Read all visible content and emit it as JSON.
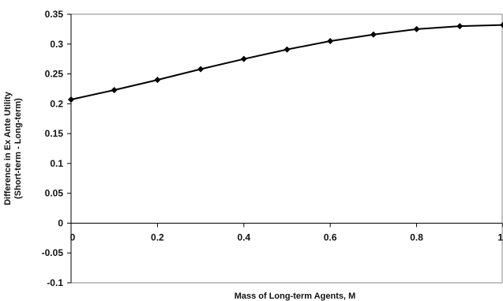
{
  "chart_data": {
    "type": "line",
    "title": "",
    "xlabel": "Mass of Long-term Agents, M",
    "ylabel_lines": [
      "Difference in Ex Ante Utility",
      "(Short-term - Long-term)"
    ],
    "xlim": [
      0,
      1
    ],
    "ylim": [
      -0.1,
      0.35
    ],
    "x_ticks": [
      0,
      0.2,
      0.4,
      0.6,
      0.8,
      1
    ],
    "x_tick_labels": [
      "0",
      "0.2",
      "0.4",
      "0.6",
      "0.8",
      "1"
    ],
    "y_ticks": [
      -0.1,
      -0.05,
      0,
      0.05,
      0.1,
      0.15,
      0.2,
      0.25,
      0.3,
      0.35
    ],
    "y_tick_labels": [
      "-0.1",
      "-0.05",
      "0",
      "0.05",
      "0.1",
      "0.15",
      "0.2",
      "0.25",
      "0.3",
      "0.35"
    ],
    "grid": false,
    "legend": "none",
    "series": [
      {
        "x": [
          0,
          0.1,
          0.2,
          0.3,
          0.4,
          0.5,
          0.6,
          0.7,
          0.8,
          0.9,
          1.0
        ],
        "y": [
          0.207,
          0.223,
          0.24,
          0.258,
          0.275,
          0.291,
          0.305,
          0.316,
          0.325,
          0.33,
          0.332
        ]
      }
    ]
  }
}
